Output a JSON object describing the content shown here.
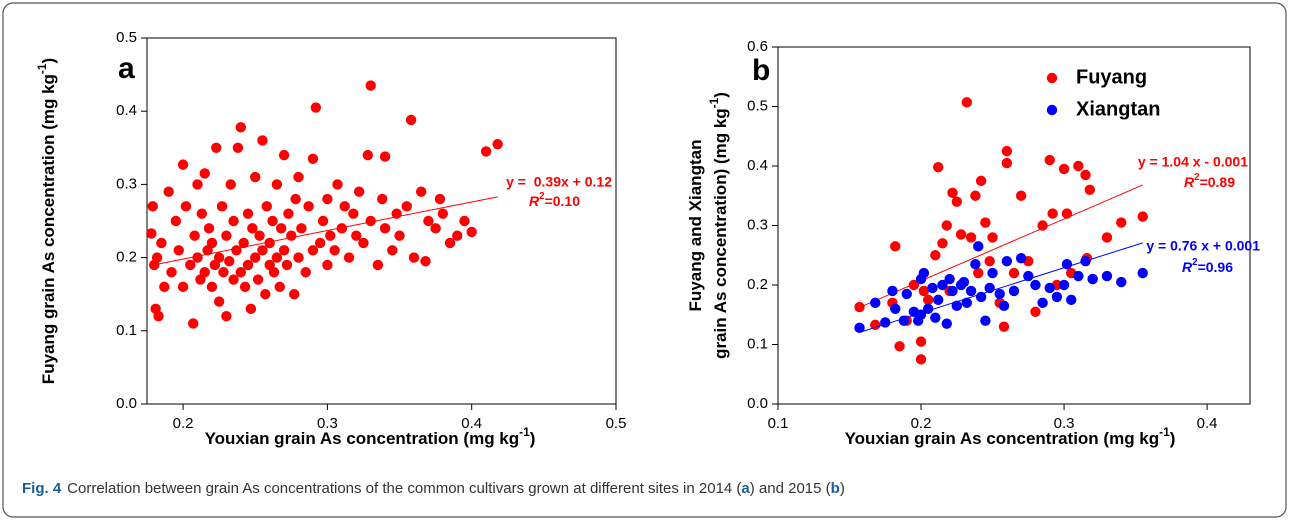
{
  "chart_data": [
    {
      "type": "scatter",
      "panel_label": "a",
      "xlabel": [
        "Youxian grain As concentration (mg kg",
        "-1",
        ")"
      ],
      "ylabel": [
        [
          "Fuyang  grain As concentration (mg kg",
          "-1",
          ")"
        ]
      ],
      "xlim": [
        0.175,
        0.5
      ],
      "xticks": [
        0.2,
        0.3,
        0.4,
        0.5
      ],
      "ylim": [
        0,
        0.5
      ],
      "yticks": [
        {
          "value": 0,
          "label": "0.0"
        },
        0.1,
        0.2,
        0.3,
        0.4,
        0.5
      ],
      "series": [
        {
          "color": "#ff0000",
          "x": [
            0.178,
            0.179,
            0.18,
            0.181,
            0.182,
            0.183,
            0.185,
            0.187,
            0.19,
            0.192,
            0.195,
            0.197,
            0.2,
            0.2,
            0.202,
            0.205,
            0.207,
            0.208,
            0.21,
            0.21,
            0.212,
            0.213,
            0.215,
            0.215,
            0.217,
            0.218,
            0.22,
            0.22,
            0.222,
            0.223,
            0.225,
            0.225,
            0.227,
            0.228,
            0.23,
            0.23,
            0.232,
            0.233,
            0.235,
            0.235,
            0.237,
            0.238,
            0.24,
            0.24,
            0.242,
            0.243,
            0.245,
            0.245,
            0.247,
            0.248,
            0.25,
            0.25,
            0.252,
            0.253,
            0.255,
            0.255,
            0.257,
            0.258,
            0.26,
            0.26,
            0.262,
            0.263,
            0.265,
            0.265,
            0.267,
            0.268,
            0.27,
            0.27,
            0.272,
            0.273,
            0.275,
            0.277,
            0.278,
            0.28,
            0.28,
            0.282,
            0.285,
            0.287,
            0.29,
            0.29,
            0.292,
            0.295,
            0.297,
            0.3,
            0.3,
            0.302,
            0.305,
            0.307,
            0.31,
            0.312,
            0.315,
            0.318,
            0.32,
            0.322,
            0.325,
            0.328,
            0.33,
            0.33,
            0.335,
            0.338,
            0.34,
            0.345,
            0.348,
            0.35,
            0.355,
            0.358,
            0.36,
            0.365,
            0.368,
            0.37,
            0.375,
            0.378,
            0.38,
            0.385,
            0.39,
            0.395,
            0.4,
            0.41,
            0.418,
            0.34
          ],
          "values": [
            0.233,
            0.27,
            0.19,
            0.13,
            0.2,
            0.12,
            0.22,
            0.16,
            0.29,
            0.18,
            0.25,
            0.21,
            0.16,
            0.327,
            0.27,
            0.19,
            0.11,
            0.23,
            0.2,
            0.3,
            0.17,
            0.26,
            0.315,
            0.18,
            0.21,
            0.24,
            0.16,
            0.22,
            0.19,
            0.35,
            0.2,
            0.14,
            0.27,
            0.18,
            0.12,
            0.23,
            0.195,
            0.3,
            0.17,
            0.25,
            0.21,
            0.35,
            0.18,
            0.378,
            0.22,
            0.16,
            0.26,
            0.19,
            0.13,
            0.24,
            0.2,
            0.31,
            0.17,
            0.23,
            0.21,
            0.36,
            0.15,
            0.27,
            0.19,
            0.22,
            0.25,
            0.18,
            0.2,
            0.3,
            0.16,
            0.24,
            0.21,
            0.34,
            0.19,
            0.26,
            0.23,
            0.15,
            0.28,
            0.2,
            0.31,
            0.24,
            0.18,
            0.27,
            0.21,
            0.335,
            0.405,
            0.22,
            0.25,
            0.19,
            0.28,
            0.23,
            0.21,
            0.3,
            0.24,
            0.27,
            0.2,
            0.26,
            0.23,
            0.29,
            0.22,
            0.34,
            0.435,
            0.25,
            0.19,
            0.28,
            0.24,
            0.21,
            0.26,
            0.23,
            0.27,
            0.388,
            0.2,
            0.29,
            0.195,
            0.25,
            0.24,
            0.28,
            0.26,
            0.22,
            0.23,
            0.25,
            0.235,
            0.345,
            0.355,
            0.338
          ],
          "fit": {
            "equation": "y =  0.39x + 0.12",
            "r2_label": [
              "R",
              "2",
              "=0.10"
            ],
            "slope": 0.39,
            "intercept": 0.12,
            "x_range": [
              0.178,
              0.418
            ]
          }
        }
      ]
    },
    {
      "type": "scatter",
      "panel_label": "b",
      "xlabel": [
        "Youxian grain As concentration (mg kg",
        "-1",
        ")"
      ],
      "ylabel": [
        [
          "Fuyang and Xiangtan"
        ],
        [
          "grain As concentration) (mg kg",
          "-1",
          ")"
        ]
      ],
      "xlim": [
        0.1,
        0.43
      ],
      "xticks": [
        0.1,
        0.2,
        0.3,
        0.4
      ],
      "ylim": [
        0,
        0.6
      ],
      "yticks": [
        {
          "value": 0,
          "label": "0.0"
        },
        0.1,
        0.2,
        0.3,
        0.4,
        0.5,
        0.6
      ],
      "legend": "upper right",
      "series": [
        {
          "name": "Fuyang",
          "color": "#ff0000",
          "x": [
            0.157,
            0.168,
            0.18,
            0.182,
            0.185,
            0.19,
            0.195,
            0.2,
            0.2,
            0.202,
            0.205,
            0.21,
            0.212,
            0.215,
            0.218,
            0.22,
            0.222,
            0.225,
            0.228,
            0.232,
            0.235,
            0.238,
            0.24,
            0.242,
            0.245,
            0.248,
            0.25,
            0.255,
            0.258,
            0.26,
            0.26,
            0.265,
            0.27,
            0.275,
            0.28,
            0.285,
            0.29,
            0.292,
            0.295,
            0.3,
            0.302,
            0.305,
            0.31,
            0.315,
            0.318,
            0.32,
            0.33,
            0.34,
            0.355,
            0.316
          ],
          "values": [
            0.163,
            0.133,
            0.17,
            0.265,
            0.097,
            0.14,
            0.2,
            0.075,
            0.105,
            0.19,
            0.175,
            0.25,
            0.398,
            0.27,
            0.3,
            0.19,
            0.355,
            0.34,
            0.285,
            0.507,
            0.28,
            0.35,
            0.22,
            0.375,
            0.305,
            0.24,
            0.28,
            0.17,
            0.13,
            0.425,
            0.405,
            0.22,
            0.35,
            0.24,
            0.155,
            0.3,
            0.41,
            0.32,
            0.2,
            0.395,
            0.32,
            0.22,
            0.4,
            0.385,
            0.36,
            0.21,
            0.28,
            0.305,
            0.315,
            0.245
          ],
          "fit": {
            "equation": "y = 1.04 x - 0.001",
            "r2_label": [
              "R",
              "2",
              "=0.89"
            ],
            "slope": 1.04,
            "intercept": -0.001,
            "x_range": [
              0.157,
              0.355
            ]
          }
        },
        {
          "name": "Xiangtan",
          "color": "#0000ff",
          "x": [
            0.157,
            0.168,
            0.175,
            0.18,
            0.182,
            0.188,
            0.19,
            0.195,
            0.198,
            0.2,
            0.2,
            0.202,
            0.205,
            0.208,
            0.21,
            0.212,
            0.215,
            0.218,
            0.22,
            0.222,
            0.225,
            0.228,
            0.23,
            0.232,
            0.235,
            0.238,
            0.24,
            0.242,
            0.245,
            0.248,
            0.25,
            0.255,
            0.258,
            0.26,
            0.265,
            0.27,
            0.275,
            0.28,
            0.285,
            0.29,
            0.295,
            0.3,
            0.302,
            0.305,
            0.31,
            0.315,
            0.32,
            0.33,
            0.34,
            0.355
          ],
          "values": [
            0.128,
            0.17,
            0.137,
            0.19,
            0.16,
            0.14,
            0.185,
            0.155,
            0.14,
            0.21,
            0.15,
            0.22,
            0.16,
            0.195,
            0.145,
            0.175,
            0.2,
            0.135,
            0.21,
            0.19,
            0.165,
            0.2,
            0.205,
            0.17,
            0.19,
            0.235,
            0.265,
            0.18,
            0.14,
            0.195,
            0.22,
            0.185,
            0.165,
            0.24,
            0.19,
            0.245,
            0.215,
            0.2,
            0.17,
            0.195,
            0.18,
            0.2,
            0.235,
            0.175,
            0.215,
            0.24,
            0.21,
            0.215,
            0.205,
            0.22
          ],
          "fit": {
            "equation": "y = 0.76 x + 0.001",
            "r2_label": [
              "R",
              "2",
              "=0.96"
            ],
            "slope": 0.76,
            "intercept": 0.001,
            "x_range": [
              0.157,
              0.355
            ]
          }
        }
      ]
    }
  ],
  "caption": {
    "label": "Fig. 4",
    "parts": [
      "Correlation between grain As concentrations of the common cultivars grown at different sites in 2014 (",
      "a",
      ") and 2015 (",
      "b",
      ")"
    ]
  }
}
